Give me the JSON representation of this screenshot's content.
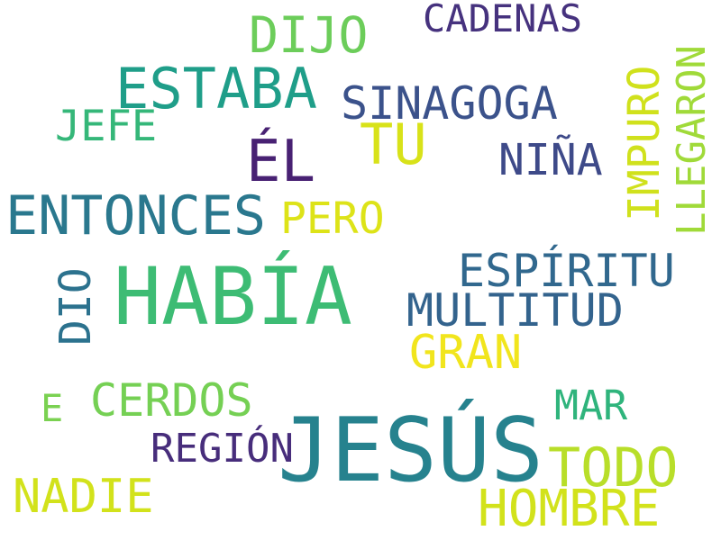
{
  "words": [
    {
      "id": "jesus",
      "text": "JESÚS",
      "color": "#26828e"
    },
    {
      "id": "habia",
      "text": "HABÍA",
      "color": "#3dbc74"
    },
    {
      "id": "estaba",
      "text": "ESTABA",
      "color": "#1f9e89"
    },
    {
      "id": "entonces",
      "text": "ENTONCES",
      "color": "#2a788e"
    },
    {
      "id": "el",
      "text": "ÉL",
      "color": "#482173"
    },
    {
      "id": "tu",
      "text": "TU",
      "color": "#d8e219"
    },
    {
      "id": "sinagoga",
      "text": "SINAGOGA",
      "color": "#3b528b"
    },
    {
      "id": "dijo",
      "text": "DIJO",
      "color": "#6ccd5a"
    },
    {
      "id": "cadenas",
      "text": "CADENAS",
      "color": "#46327e"
    },
    {
      "id": "jefe",
      "text": "JEFE",
      "color": "#35b779"
    },
    {
      "id": "nina",
      "text": "NIÑA",
      "color": "#3e4a89"
    },
    {
      "id": "impuro",
      "text": "IMPURO",
      "color": "#d0e11c"
    },
    {
      "id": "llegaron",
      "text": "LLEGARON",
      "color": "#a0da39"
    },
    {
      "id": "pero",
      "text": "PERO",
      "color": "#dde318"
    },
    {
      "id": "espiritu",
      "text": "ESPÍRITU",
      "color": "#31688e"
    },
    {
      "id": "multitud",
      "text": "MULTITUD",
      "color": "#33638d"
    },
    {
      "id": "dio",
      "text": "DIO",
      "color": "#2c728e"
    },
    {
      "id": "gran",
      "text": "GRAN",
      "color": "#f1e51d"
    },
    {
      "id": "cerdos",
      "text": "CERDOS",
      "color": "#75d054"
    },
    {
      "id": "e",
      "text": "E",
      "color": "#7ad151"
    },
    {
      "id": "mar",
      "text": "MAR",
      "color": "#2fb47c"
    },
    {
      "id": "region",
      "text": "REGIÓN",
      "color": "#472d7b"
    },
    {
      "id": "todo",
      "text": "TODO",
      "color": "#b8de29"
    },
    {
      "id": "nadie",
      "text": "NADIE",
      "color": "#d2e21b"
    },
    {
      "id": "hombre",
      "text": "HOMBRE",
      "color": "#d2e21b"
    }
  ]
}
